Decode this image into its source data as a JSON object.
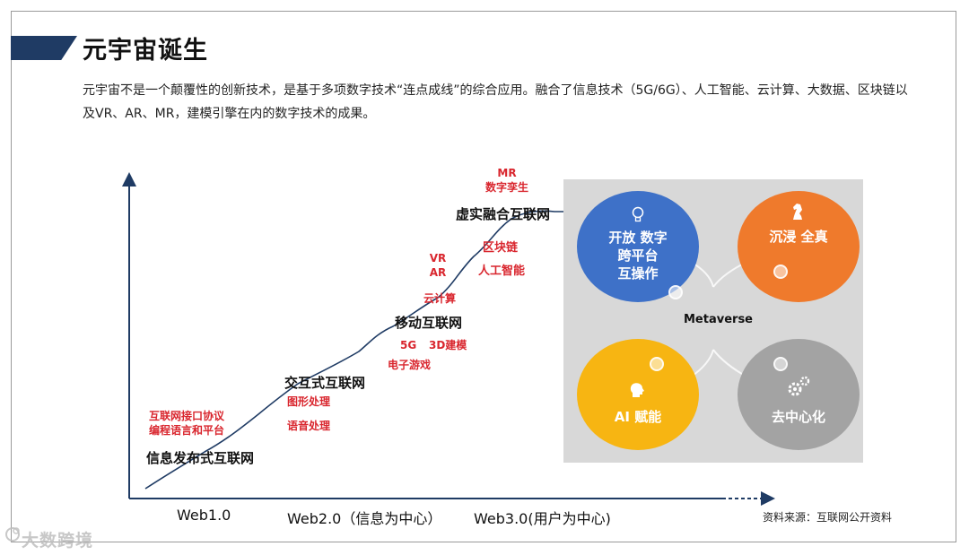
{
  "header": {
    "title": "元宇宙诞生",
    "description": "元宇宙不是一个颠覆性的创新技术，是基于多项数字技术“连点成线”的综合应用。融合了信息技术（5G/6G）、人工智能、云计算、大数据、区块链以及VR、AR、MR，建模引擎在内的数字技术的成果。"
  },
  "axis": {
    "x_labels": [
      "Web1.0",
      "Web2.0（信息为中心）",
      "Web3.0(用户为中心)"
    ]
  },
  "stages": [
    "信息发布式互联网",
    "交互式互联网",
    "移动互联网",
    "虚实融合互联网"
  ],
  "technologies": {
    "web1": [
      "互联网接口协议",
      "编程语言和平台"
    ],
    "interactive": [
      "图形处理",
      "语音处理"
    ],
    "mobile": [
      "5G",
      "3D建模",
      "电子游戏"
    ],
    "cloud": "云计算",
    "ar_vr": [
      "VR",
      "AR"
    ],
    "blockchain_ai": [
      "区块链",
      "人工智能"
    ],
    "mr_twin": [
      "MR",
      "数字孪生"
    ]
  },
  "metaverse": {
    "center_label": "Metaverse",
    "features": [
      {
        "lines": [
          "开放 数字",
          "跨平台",
          "互操作"
        ],
        "icon": "lightbulb-icon",
        "color": "#3e71c8"
      },
      {
        "lines": [
          "沉浸 全真"
        ],
        "icon": "chess-knight-icon",
        "color": "#ef7a2c"
      },
      {
        "lines": [
          "AI 赋能"
        ],
        "icon": "ai-head-icon",
        "color": "#f7b512"
      },
      {
        "lines": [
          "去中心化"
        ],
        "icon": "gears-icon",
        "color": "#a3a3a3"
      }
    ]
  },
  "source": "资料来源：互联网公开资料",
  "watermark": "大数跨境",
  "colors": {
    "accent": "#1f3b64",
    "tech_red": "#d9262e"
  }
}
